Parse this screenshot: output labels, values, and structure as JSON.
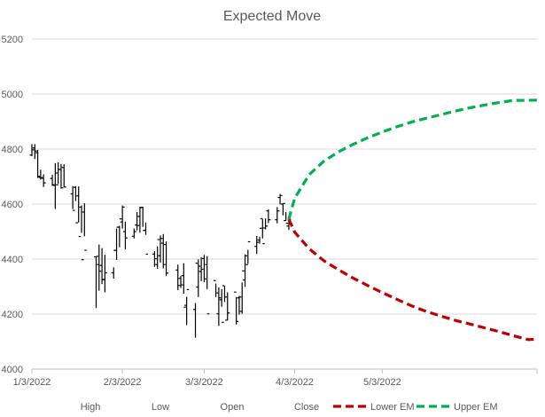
{
  "chart_data": {
    "type": "line",
    "title": "Expected Move",
    "xlabel": "",
    "ylabel": "",
    "ylim": [
      4000,
      5200
    ],
    "yticks": [
      4000,
      4200,
      4400,
      4600,
      4800,
      5000,
      5200
    ],
    "x_range_days": [
      0,
      173
    ],
    "x_tick_labels": [
      {
        "label": "1/3/2022",
        "day": 0
      },
      {
        "label": "2/3/2022",
        "day": 31
      },
      {
        "label": "3/3/2022",
        "day": 59
      },
      {
        "label": "4/3/2022",
        "day": 90
      },
      {
        "label": "5/3/2022",
        "day": 120
      }
    ],
    "gridlines": "horizontal",
    "legend_position": "bottom",
    "legend": [
      "High",
      "Low",
      "Open",
      "Close",
      "Lower EM",
      "Upper EM"
    ],
    "ohlc": {
      "name": "Price (High-Low-Open-Close)",
      "days": [
        0,
        1,
        2,
        3,
        4,
        7,
        8,
        9,
        10,
        11,
        14,
        15,
        16,
        17,
        18,
        22,
        23,
        24,
        25,
        28,
        29,
        30,
        31,
        32,
        35,
        36,
        37,
        38,
        39,
        42,
        43,
        44,
        45,
        46,
        50,
        51,
        52,
        53,
        56,
        57,
        58,
        59,
        60,
        63,
        64,
        65,
        66,
        67,
        70,
        71,
        72,
        73,
        74,
        77,
        78,
        79,
        80,
        81,
        84,
        85,
        86,
        87,
        88
      ],
      "open": [
        4778,
        4804,
        4787,
        4697,
        4694,
        4693,
        4668,
        4670,
        4726,
        4733,
        4637,
        4661,
        4630,
        4589,
        4571,
        4408,
        4380,
        4377,
        4325,
        4350,
        4432,
        4516,
        4535,
        4500,
        4483,
        4524,
        4555,
        4588,
        4505,
        4418,
        4380,
        4412,
        4458,
        4453,
        4360,
        4330,
        4340,
        4232,
        4217,
        4298,
        4355,
        4402,
        4380,
        4322,
        4201,
        4252,
        4303,
        4178,
        4280,
        4259,
        4210,
        4324,
        4380,
        4446,
        4469,
        4547,
        4513,
        4575,
        4543,
        4624,
        4600,
        4540,
        4520
      ],
      "high": [
        4818,
        4818,
        4797,
        4725,
        4708,
        4706,
        4749,
        4752,
        4746,
        4745,
        4665,
        4665,
        4664,
        4595,
        4603,
        4410,
        4453,
        4440,
        4416,
        4370,
        4511,
        4521,
        4595,
        4536,
        4511,
        4571,
        4590,
        4590,
        4533,
        4429,
        4446,
        4486,
        4491,
        4464,
        4380,
        4339,
        4385,
        4263,
        4240,
        4399,
        4407,
        4415,
        4411,
        4311,
        4297,
        4291,
        4302,
        4279,
        4262,
        4266,
        4315,
        4417,
        4434,
        4484,
        4481,
        4546,
        4548,
        4581,
        4589,
        4637,
        4602,
        4571,
        4543
      ],
      "low": [
        4774,
        4764,
        4695,
        4689,
        4662,
        4666,
        4582,
        4673,
        4656,
        4661,
        4582,
        4611,
        4533,
        4495,
        4483,
        4222,
        4285,
        4309,
        4279,
        4329,
        4397,
        4443,
        4511,
        4435,
        4475,
        4504,
        4496,
        4517,
        4488,
        4372,
        4365,
        4387,
        4366,
        4338,
        4287,
        4295,
        4274,
        4160,
        4114,
        4262,
        4320,
        4316,
        4291,
        4262,
        4157,
        4227,
        4244,
        4177,
        4162,
        4198,
        4201,
        4299,
        4383,
        4419,
        4456,
        4475,
        4508,
        4531,
        4530,
        4599,
        4559,
        4539,
        4506
      ],
      "close": [
        4797,
        4793,
        4701,
        4696,
        4677,
        4670,
        4713,
        4726,
        4659,
        4662,
        4577,
        4532,
        4482,
        4398,
        4432,
        4410,
        4356,
        4326,
        4350,
        4432,
        4516,
        4546,
        4589,
        4477,
        4500,
        4522,
        4587,
        4504,
        4418,
        4401,
        4471,
        4475,
        4380,
        4349,
        4304,
        4306,
        4225,
        4289,
        4385,
        4374,
        4363,
        4328,
        4201,
        4277,
        4259,
        4170,
        4262,
        4204,
        4173,
        4262,
        4357,
        4412,
        4463,
        4461,
        4512,
        4456,
        4520,
        4543,
        4575,
        4631,
        4602,
        4530,
        4545
      ]
    },
    "series": [
      {
        "name": "Lower EM",
        "color": "#c00000",
        "style": "dashed",
        "x": [
          88,
          90,
          95,
          100,
          105,
          110,
          115,
          120,
          125,
          130,
          135,
          140,
          145,
          150,
          155,
          160,
          165,
          170,
          173
        ],
        "values": [
          4545,
          4498,
          4437,
          4394,
          4361,
          4331,
          4304,
          4278,
          4254,
          4230,
          4210,
          4193,
          4177,
          4164,
          4150,
          4136,
          4121,
          4107,
          4109
        ]
      },
      {
        "name": "Upper EM",
        "color": "#00b050",
        "style": "dashed",
        "x": [
          88,
          90,
          95,
          100,
          105,
          110,
          115,
          120,
          125,
          130,
          135,
          140,
          145,
          150,
          155,
          160,
          165,
          170,
          173
        ],
        "values": [
          4545,
          4621,
          4707,
          4756,
          4790,
          4817,
          4841,
          4862,
          4881,
          4898,
          4912,
          4925,
          4938,
          4950,
          4960,
          4969,
          4977,
          4977,
          4978
        ]
      }
    ],
    "colors": {
      "price": "#000000",
      "grid": "#d9d9d9",
      "axis": "#bfbfbf",
      "text": "#595959"
    }
  }
}
